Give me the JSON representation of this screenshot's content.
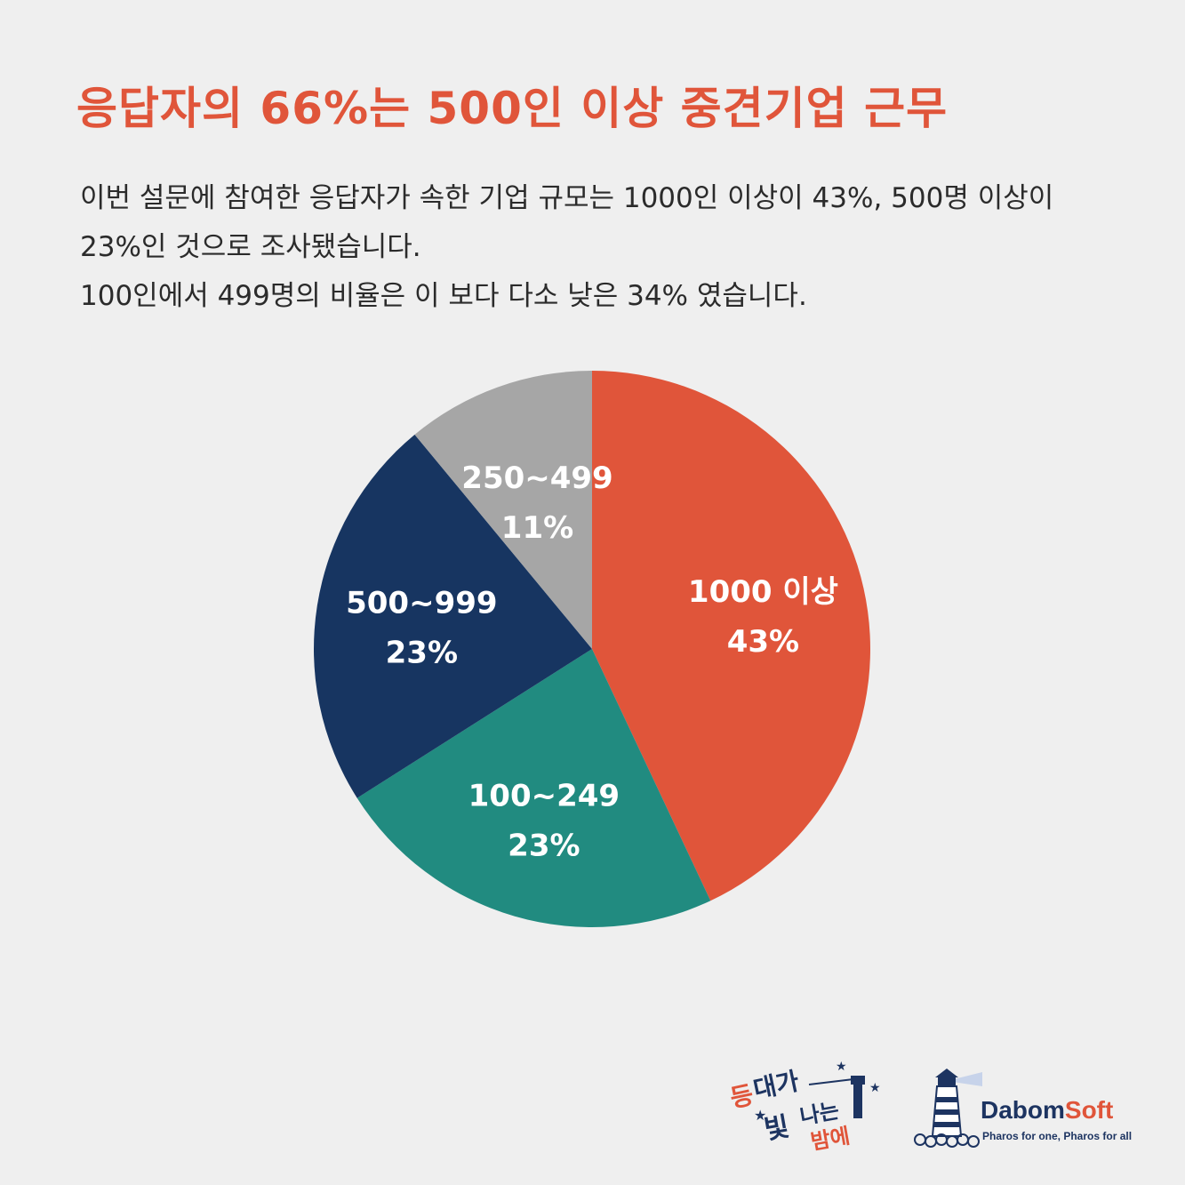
{
  "header": {
    "title": "응답자의 66%는 500인 이상 중견기업 근무"
  },
  "description": {
    "line1": "이번 설문에 참여한 응답자가 속한 기업 규모는 1000인 이상이 43%, 500명 이상이",
    "line2": "23%인 것으로 조사됐습니다.",
    "line3": "100인에서 499명의 비율은 이 보다 다소 낮은 34% 였습니다."
  },
  "chart_data": {
    "type": "pie",
    "slices": [
      {
        "label": "1000 이상",
        "value": 43,
        "display": "43%",
        "color": "#e0553a"
      },
      {
        "label": "100~249",
        "value": 23,
        "display": "23%",
        "color": "#218b80"
      },
      {
        "label": "500~999",
        "value": 23,
        "display": "23%",
        "color": "#173561"
      },
      {
        "label": "250~499",
        "value": 11,
        "display": "11%",
        "color": "#a6a6a6"
      }
    ]
  },
  "logos": {
    "event_logo_text": "등대가 빛나는 밤에",
    "brand_dabom": "Dabom",
    "brand_soft": "Soft",
    "tagline": "Pharos for one, Pharos for all"
  }
}
